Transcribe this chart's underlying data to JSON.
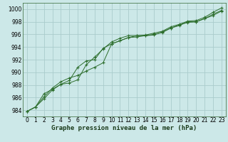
{
  "title": "Graphe pression niveau de la mer (hPa)",
  "background_color": "#cce8e8",
  "grid_color": "#aacccc",
  "line_color": "#2d6e2d",
  "marker_color": "#2d6e2d",
  "xlim": [
    -0.5,
    23.5
  ],
  "ylim": [
    983.0,
    1001.0
  ],
  "xticks": [
    0,
    1,
    2,
    3,
    4,
    5,
    6,
    7,
    8,
    9,
    10,
    11,
    12,
    13,
    14,
    15,
    16,
    17,
    18,
    19,
    20,
    21,
    22,
    23
  ],
  "yticks": [
    984,
    986,
    988,
    990,
    992,
    994,
    996,
    998,
    1000
  ],
  "series": [
    [
      983.8,
      984.5,
      985.8,
      987.2,
      988.1,
      988.3,
      988.8,
      991.2,
      992.4,
      993.7,
      994.8,
      995.4,
      995.8,
      995.8,
      995.9,
      996.2,
      996.5,
      997.2,
      997.6,
      998.1,
      998.2,
      998.7,
      999.5,
      1000.2
    ],
    [
      983.8,
      984.5,
      986.1,
      987.5,
      988.5,
      989.1,
      989.5,
      990.2,
      990.8,
      991.5,
      994.5,
      995.0,
      995.5,
      995.8,
      995.8,
      996.0,
      996.3,
      997.0,
      997.4,
      998.0,
      998.0,
      998.5,
      999.2,
      999.8
    ],
    [
      983.8,
      984.5,
      986.6,
      987.3,
      988.1,
      988.7,
      990.8,
      991.8,
      992.0,
      993.8,
      994.5,
      995.0,
      995.5,
      995.6,
      995.8,
      995.9,
      996.4,
      997.0,
      997.5,
      997.9,
      998.0,
      998.5,
      999.0,
      999.7
    ]
  ],
  "ylabel_fontsize": 5.5,
  "tick_fontsize": 5.5,
  "xlabel_fontsize": 6.5
}
